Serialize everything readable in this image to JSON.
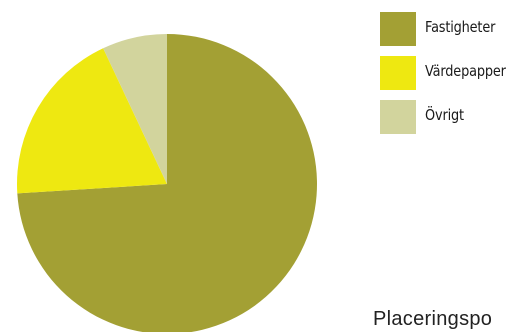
{
  "chart_data": {
    "type": "pie",
    "title": "",
    "slices": [
      {
        "label": "Fastigheter",
        "value": 74,
        "color": "#a3a034"
      },
      {
        "label": "Värdepapper",
        "value": 19,
        "color": "#eee811"
      },
      {
        "label": "Övrigt",
        "value": 7,
        "color": "#d2d49d"
      }
    ],
    "legend_position": "right"
  },
  "caption": "Placeringspo"
}
